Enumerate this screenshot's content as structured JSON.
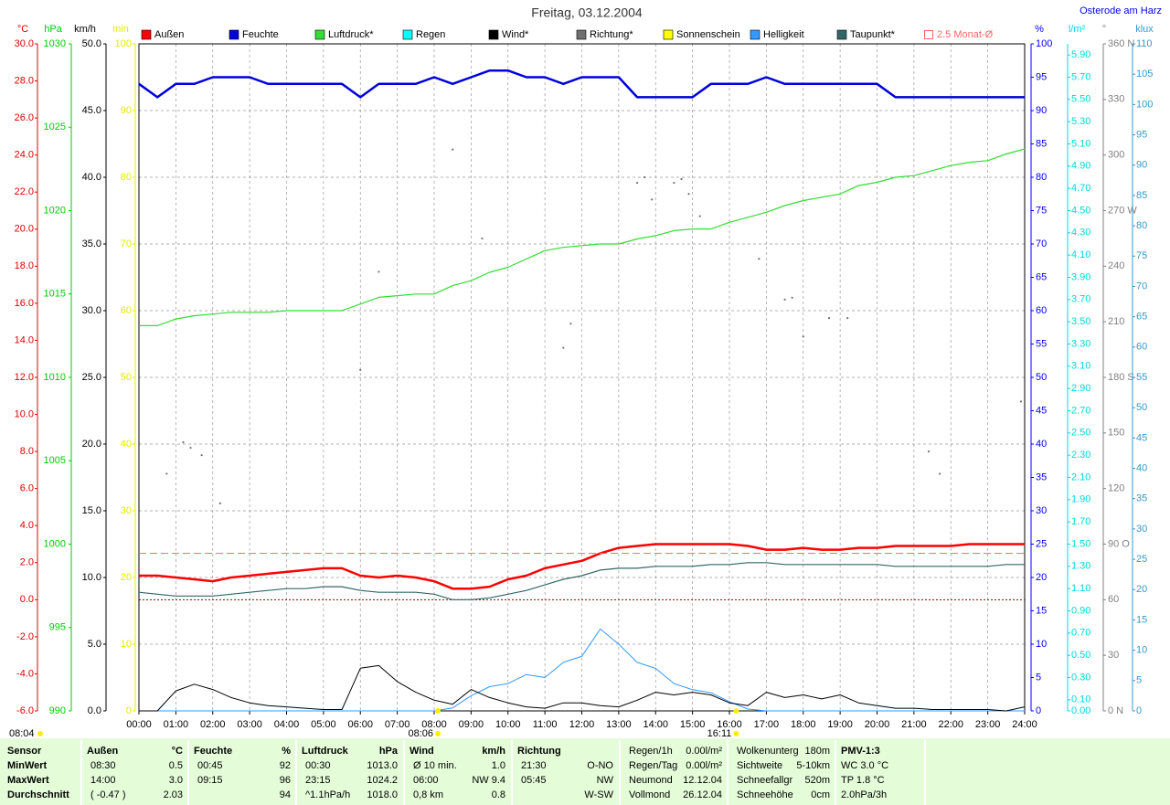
{
  "chart_data": {
    "type": "line",
    "title": "Freitag, 03.12.2004",
    "location": "Osterode am Harz",
    "grid": true,
    "zero_line": true,
    "axes": [
      {
        "title": "°C",
        "color": "#e00000",
        "ylim": [
          -6,
          30
        ],
        "yticks": [
          {
            "value": -6,
            "label": "-6.0"
          },
          {
            "value": -4,
            "label": "-4.0"
          },
          {
            "value": -2,
            "label": "-2.0"
          },
          {
            "value": 0,
            "label": "0.0"
          },
          {
            "value": 2,
            "label": "2.0"
          },
          {
            "value": 4,
            "label": "4.0"
          },
          {
            "value": 6,
            "label": "6.0"
          },
          {
            "value": 8,
            "label": "8.0"
          },
          {
            "value": 10,
            "label": "10.0"
          },
          {
            "value": 12,
            "label": "12.0"
          },
          {
            "value": 14,
            "label": "14.0"
          },
          {
            "value": 16,
            "label": "16.0"
          },
          {
            "value": 18,
            "label": "18.0"
          },
          {
            "value": 20,
            "label": "20.0"
          },
          {
            "value": 22,
            "label": "22.0"
          },
          {
            "value": 24,
            "label": "24.0"
          },
          {
            "value": 26,
            "label": "26.0"
          },
          {
            "value": 28,
            "label": "28.0"
          },
          {
            "value": 30,
            "label": "30.0"
          }
        ]
      },
      {
        "title": "hPa",
        "color": "#00cc00",
        "ylim": [
          990,
          1030
        ],
        "yticks": [
          990,
          995,
          1000,
          1005,
          1010,
          1015,
          1020,
          1025,
          1030
        ]
      },
      {
        "title": "km/h",
        "color": "#000000",
        "ylim": [
          0,
          50
        ],
        "yticks": [
          {
            "value": 0,
            "label": "0.0"
          },
          {
            "value": 5,
            "label": "5.0"
          },
          {
            "value": 10,
            "label": "10.0"
          },
          {
            "value": 15,
            "label": "15.0"
          },
          {
            "value": 20,
            "label": "20.0"
          },
          {
            "value": 25,
            "label": "25.0"
          },
          {
            "value": 30,
            "label": "30.0"
          },
          {
            "value": 35,
            "label": "35.0"
          },
          {
            "value": 40,
            "label": "40.0"
          },
          {
            "value": 45,
            "label": "45.0"
          },
          {
            "value": 50,
            "label": "50.0"
          }
        ]
      },
      {
        "title": "min",
        "color": "#e8e800",
        "ylim": [
          0,
          100
        ],
        "yticks": [
          0,
          10,
          20,
          30,
          40,
          50,
          60,
          70,
          80,
          90,
          100
        ]
      },
      {
        "title": "%",
        "color": "#0000ff",
        "ylim": [
          0,
          100
        ],
        "yticks": [
          0,
          5,
          10,
          15,
          20,
          25,
          30,
          35,
          40,
          45,
          50,
          55,
          60,
          65,
          70,
          75,
          80,
          85,
          90,
          95,
          100
        ]
      },
      {
        "title": "l/m²",
        "color": "#00d8d8",
        "ylim": [
          0,
          6
        ],
        "yticks": [
          {
            "value": 0,
            "label": "0.00"
          },
          {
            "value": 0.1,
            "label": "0.10"
          },
          {
            "value": 0.3,
            "label": "0.30"
          },
          {
            "value": 0.5,
            "label": "0.50"
          },
          {
            "value": 0.7,
            "label": "0.70"
          },
          {
            "value": 0.9,
            "label": "0.90"
          },
          {
            "value": 1.1,
            "label": "1.10"
          },
          {
            "value": 1.3,
            "label": "1.30"
          },
          {
            "value": 1.5,
            "label": "1.50"
          },
          {
            "value": 1.7,
            "label": "1.70"
          },
          {
            "value": 1.9,
            "label": "1.90"
          },
          {
            "value": 2.1,
            "label": "2.10"
          },
          {
            "value": 2.3,
            "label": "2.30"
          },
          {
            "value": 2.5,
            "label": "2.50"
          },
          {
            "value": 2.7,
            "label": "2.70"
          },
          {
            "value": 2.9,
            "label": "2.90"
          },
          {
            "value": 3.1,
            "label": "3.10"
          },
          {
            "value": 3.3,
            "label": "3.30"
          },
          {
            "value": 3.5,
            "label": "3.50"
          },
          {
            "value": 3.7,
            "label": "3.70"
          },
          {
            "value": 3.9,
            "label": "3.90"
          },
          {
            "value": 4.1,
            "label": "4.10"
          },
          {
            "value": 4.3,
            "label": "4.30"
          },
          {
            "value": 4.5,
            "label": "4.50"
          },
          {
            "value": 4.7,
            "label": "4.70"
          },
          {
            "value": 4.9,
            "label": "4.90"
          },
          {
            "value": 5.1,
            "label": "5.10"
          },
          {
            "value": 5.3,
            "label": "5.30"
          },
          {
            "value": 5.5,
            "label": "5.50"
          },
          {
            "value": 5.7,
            "label": "5.70"
          },
          {
            "value": 5.9,
            "label": "5.90"
          }
        ]
      },
      {
        "title": "°",
        "color": "#808080",
        "ylim": [
          0,
          360
        ],
        "yticks": [
          {
            "value": 0,
            "label": "0 N"
          },
          30,
          60,
          {
            "value": 90,
            "label": "90 O"
          },
          120,
          150,
          {
            "value": 180,
            "label": "180 S"
          },
          210,
          240,
          {
            "value": 270,
            "label": "270 W"
          },
          300,
          330,
          {
            "value": 360,
            "label": "360 N"
          }
        ]
      },
      {
        "title": "klux",
        "color": "#3399cc",
        "ylim": [
          0,
          110
        ],
        "yticks": [
          0,
          5,
          10,
          15,
          20,
          25,
          30,
          35,
          40,
          45,
          50,
          55,
          60,
          65,
          70,
          75,
          80,
          85,
          90,
          95,
          100,
          105,
          110
        ]
      }
    ],
    "xlim": [
      0,
      24
    ],
    "xticks": [
      {
        "value": 0,
        "label": "00:00"
      },
      {
        "value": 1,
        "label": "01:00"
      },
      {
        "value": 2,
        "label": "02:00"
      },
      {
        "value": 3,
        "label": "03:00"
      },
      {
        "value": 4,
        "label": "04:00"
      },
      {
        "value": 5,
        "label": "05:00"
      },
      {
        "value": 6,
        "label": "06:00"
      },
      {
        "value": 7,
        "label": "07:00"
      },
      {
        "value": 8,
        "label": "08:00"
      },
      {
        "value": 9,
        "label": "09:00"
      },
      {
        "value": 10,
        "label": "10:00"
      },
      {
        "value": 11,
        "label": "11:00"
      },
      {
        "value": 12,
        "label": "12:00"
      },
      {
        "value": 13,
        "label": "13:00"
      },
      {
        "value": 14,
        "label": "14:00"
      },
      {
        "value": 15,
        "label": "15:00"
      },
      {
        "value": 16,
        "label": "16:00"
      },
      {
        "value": 17,
        "label": "17:00"
      },
      {
        "value": 18,
        "label": "18:00"
      },
      {
        "value": 19,
        "label": "19:00"
      },
      {
        "value": 20,
        "label": "20:00"
      },
      {
        "value": 21,
        "label": "21:00"
      },
      {
        "value": 22,
        "label": "22:00"
      },
      {
        "value": 23,
        "label": "23:00"
      },
      {
        "value": 24,
        "label": "24:00"
      }
    ],
    "x": [
      0,
      0.5,
      1,
      1.5,
      2,
      2.5,
      3,
      3.5,
      4,
      4.5,
      5,
      5.5,
      6,
      6.5,
      7,
      7.5,
      8,
      8.5,
      9,
      9.5,
      10,
      10.5,
      11,
      11.5,
      12,
      12.5,
      13,
      13.5,
      14,
      14.5,
      15,
      15.5,
      16,
      16.5,
      17,
      17.5,
      18,
      18.5,
      19,
      19.5,
      20,
      20.5,
      21,
      21.5,
      22,
      22.5,
      23,
      23.5,
      24
    ],
    "series": [
      {
        "name": "Außen",
        "color": "#ff0000",
        "axis": 0,
        "width": 2.5,
        "values": [
          1.3,
          1.3,
          1.2,
          1.1,
          1.0,
          1.2,
          1.3,
          1.4,
          1.5,
          1.6,
          1.7,
          1.7,
          1.3,
          1.2,
          1.3,
          1.2,
          1.0,
          0.6,
          0.6,
          0.7,
          1.1,
          1.3,
          1.7,
          1.9,
          2.1,
          2.5,
          2.8,
          2.9,
          3.0,
          3.0,
          3.0,
          3.0,
          3.0,
          2.9,
          2.7,
          2.7,
          2.8,
          2.7,
          2.7,
          2.8,
          2.8,
          2.9,
          2.9,
          2.9,
          2.9,
          3.0,
          3.0,
          3.0,
          3.0
        ]
      },
      {
        "name": "Feuchte",
        "color": "#0000dd",
        "axis": 4,
        "width": 2.5,
        "values": [
          94,
          92,
          94,
          94,
          95,
          95,
          95,
          94,
          94,
          94,
          94,
          94,
          92,
          94,
          94,
          94,
          95,
          94,
          95,
          96,
          96,
          95,
          95,
          94,
          95,
          95,
          95,
          92,
          92,
          92,
          92,
          94,
          94,
          94,
          95,
          94,
          94,
          94,
          94,
          94,
          94,
          92,
          92,
          92,
          92,
          92,
          92,
          92,
          92
        ]
      },
      {
        "name": "Luftdruck*",
        "color": "#33dd33",
        "axis": 1,
        "width": 1.2,
        "values": [
          1013.1,
          1013.1,
          1013.5,
          1013.7,
          1013.8,
          1013.9,
          1013.9,
          1013.9,
          1014.0,
          1014.0,
          1014.0,
          1014.0,
          1014.4,
          1014.8,
          1014.9,
          1015.0,
          1015.0,
          1015.5,
          1015.8,
          1016.3,
          1016.6,
          1017.1,
          1017.6,
          1017.8,
          1017.9,
          1018.0,
          1018.0,
          1018.3,
          1018.5,
          1018.8,
          1018.9,
          1018.9,
          1019.3,
          1019.6,
          1019.9,
          1020.3,
          1020.6,
          1020.8,
          1021.0,
          1021.5,
          1021.7,
          1022.0,
          1022.1,
          1022.4,
          1022.7,
          1022.9,
          1023.0,
          1023.4,
          1023.7
        ]
      },
      {
        "name": "Regen",
        "color": "#00ffff"
      },
      {
        "name": "Wind*",
        "color": "#000000",
        "axis": 2,
        "width": 1,
        "values": [
          0,
          0,
          1.5,
          2.0,
          1.6,
          1.0,
          0.6,
          0.4,
          0.3,
          0.2,
          0.1,
          0.1,
          3.2,
          3.4,
          2.2,
          1.4,
          0.8,
          0.5,
          1.6,
          1.0,
          0.6,
          0.3,
          0.2,
          0.6,
          0.6,
          0.4,
          0.3,
          0.8,
          1.4,
          1.2,
          1.4,
          1.2,
          0.6,
          0.4,
          1.4,
          1.0,
          1.2,
          0.9,
          1.2,
          0.6,
          0.4,
          0.2,
          0.2,
          0.1,
          0.1,
          0.1,
          0.1,
          0,
          0.3
        ]
      },
      {
        "name": "Richtung*",
        "color": "#707070",
        "axis": 6,
        "dots": true,
        "x": [
          0.75,
          1.2,
          1.4,
          1.7,
          2.2,
          6.0,
          6.5,
          8.5,
          9.3,
          11.5,
          11.7,
          13.5,
          13.7,
          13.9,
          14.5,
          14.7,
          14.9,
          15.2,
          16.8,
          17.5,
          17.7,
          18.0,
          18.7,
          19.2,
          21.4,
          21.7,
          23.9
        ],
        "values": [
          128,
          145,
          142,
          138,
          112,
          184,
          237,
          303,
          255,
          196,
          209,
          285,
          288,
          276,
          285,
          287,
          279,
          267,
          244,
          222,
          223,
          202,
          212,
          212,
          140,
          128,
          167
        ]
      },
      {
        "name": "Sonnenschein",
        "color": "#ffff00"
      },
      {
        "name": "Helligkeit",
        "color": "#3399ff",
        "axis": 7,
        "width": 1,
        "values": [
          0,
          0,
          0,
          0,
          0,
          0,
          0,
          0,
          0,
          0,
          0,
          0,
          0,
          0,
          0,
          0,
          0,
          0.5,
          2.5,
          4,
          4.5,
          6,
          5.5,
          8,
          9,
          13.5,
          11,
          8,
          7,
          4.5,
          3.5,
          3,
          1.5,
          0.3,
          0,
          0,
          0,
          0,
          0,
          0,
          0,
          0,
          0,
          0,
          0,
          0,
          0,
          0,
          0
        ]
      },
      {
        "name": "Taupunkt*",
        "color": "#336666",
        "axis": 0,
        "width": 1.2,
        "values": [
          0.4,
          0.3,
          0.2,
          0.2,
          0.2,
          0.3,
          0.4,
          0.5,
          0.6,
          0.6,
          0.7,
          0.7,
          0.5,
          0.4,
          0.4,
          0.4,
          0.3,
          0.0,
          0.0,
          0.1,
          0.3,
          0.5,
          0.8,
          1.1,
          1.3,
          1.6,
          1.7,
          1.7,
          1.8,
          1.8,
          1.8,
          1.9,
          1.9,
          2.0,
          2.0,
          1.9,
          1.9,
          1.9,
          1.9,
          1.9,
          1.9,
          1.8,
          1.8,
          1.8,
          1.8,
          1.8,
          1.8,
          1.9,
          1.9
        ]
      },
      {
        "name": "2.5 Monat-Ø",
        "color": "#ff6666",
        "axis": 0,
        "ref_value": 2.5
      }
    ],
    "corner_note": "08:04",
    "sun_events": [
      {
        "label": "08:06",
        "x": 8.1
      },
      {
        "label": "16:11",
        "x": 16.1833
      }
    ]
  },
  "stats": {
    "label_column": [
      "Sensor",
      "MinWert",
      "MaxWert",
      "Durchschnitt"
    ],
    "groups": [
      {
        "header": [
          "Außen",
          "°C"
        ],
        "rows": [
          [
            "08:30",
            "0.5"
          ],
          [
            "14:00",
            "3.0"
          ],
          [
            "( -0.47 )",
            "2.03"
          ]
        ]
      },
      {
        "header": [
          "Feuchte",
          "%"
        ],
        "rows": [
          [
            "00:45",
            "92"
          ],
          [
            "09:15",
            "96"
          ],
          [
            "94"
          ]
        ]
      },
      {
        "header": [
          "Luftdruck",
          "hPa"
        ],
        "rows": [
          [
            "00:30",
            "1013.0"
          ],
          [
            "23:15",
            "1024.2"
          ],
          [
            "^1.1hPa/h",
            "1018.0"
          ]
        ]
      },
      {
        "header": [
          "Wind",
          "km/h"
        ],
        "rows": [
          [
            "Ø 10 min.",
            "1.0"
          ],
          [
            "06:00",
            "NW 9.4"
          ],
          [
            "0,8 km",
            "0.8"
          ]
        ]
      },
      {
        "header": [
          "Richtung"
        ],
        "rows": [
          [
            "21:30",
            "O-NO"
          ],
          [
            "05:45",
            "NW"
          ],
          [
            "W-SW"
          ]
        ]
      },
      {
        "rows": [
          [
            "Regen/1h",
            "0.00l/m²"
          ],
          [
            "Regen/Tag",
            "0.00l/m²"
          ],
          [
            "Neumond",
            "12.12.04"
          ],
          [
            "Vollmond",
            "26.12.04"
          ]
        ]
      },
      {
        "rows": [
          [
            "Wolkenunterg",
            "180m"
          ],
          [
            "Sichtweite",
            "5-10km"
          ],
          [
            "Schneefallgr",
            "520m"
          ],
          [
            "Schneehöhe",
            "0cm"
          ]
        ]
      },
      {
        "header": [
          "PMV-1:3"
        ],
        "rows": [
          [
            "WC 3.0 °C"
          ],
          [
            "TP 1.8 °C"
          ],
          [
            "2.0hPa/3h"
          ]
        ]
      }
    ]
  }
}
